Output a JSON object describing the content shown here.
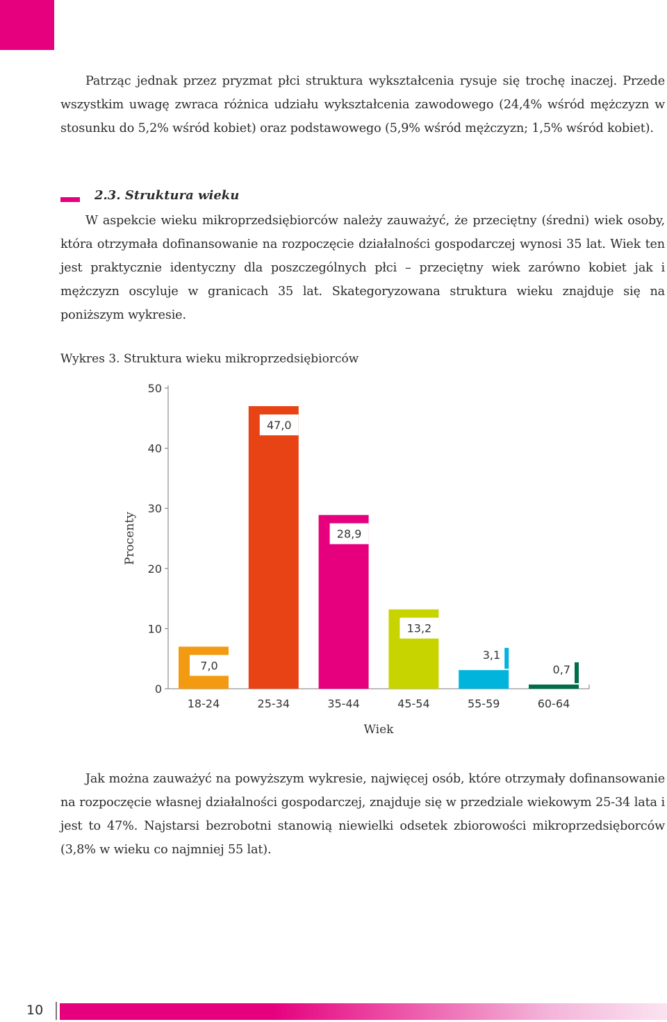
{
  "page": {
    "corner_color": "#e6007e",
    "paragraph1": "Patrząc jednak przez pryzmat płci struktura wykształcenia rysuje się trochę inaczej. Przede wszystkim uwagę zwraca różnica udziału wykształcenia zawodowego (24,4% wśród mężczyzn w stosunku do 5,2% wśród kobiet) oraz podstawowego (5,9% wśród mężczyzn; 1,5% wśród kobiet).",
    "section_heading": "2.3. Struktura wieku",
    "paragraph2": "W aspekcie wieku mikroprzedsiębiorców należy zauważyć, że przeciętny (średni) wiek osoby, która otrzymała dofinansowanie na rozpoczęcie działalności gospodarczej wynosi 35 lat. Wiek ten jest praktycznie identyczny dla poszczególnych płci – przeciętny wiek zarówno kobiet jak i mężczyzn oscyluje w granicach 35 lat. Skategoryzowana struktura wieku znajduje się na poniższym wykresie.",
    "caption": "Wykres 3. Struktura wieku mikroprzedsiębiorców",
    "paragraph3": "Jak można zauważyć na powyższym wykresie, najwięcej osób, które otrzymały dofinansowanie na rozpoczęcie własnej działalności gospodarczej, znajduje się w przedziale wiekowym 25-34 lata i jest to 47%. Najstarsi bezrobotni stanowią niewielki odsetek zbiorowości mikroprzedsięborców (3,8% w wieku co najmniej 55 lat).",
    "page_number": "10"
  },
  "chart_data": {
    "type": "bar",
    "title": "",
    "xlabel": "Wiek",
    "ylabel": "Procenty",
    "categories": [
      "18-24",
      "25-34",
      "35-44",
      "45-54",
      "55-59",
      "60-64"
    ],
    "values": [
      7.0,
      47.0,
      28.9,
      13.2,
      3.1,
      0.7
    ],
    "value_labels": [
      "7,0",
      "47,0",
      "28,9",
      "13,2",
      "3,1",
      "0,7"
    ],
    "colors": [
      "#f29a11",
      "#e84314",
      "#e6007e",
      "#c8d400",
      "#00b4dc",
      "#006e46"
    ],
    "ylim": [
      0,
      50
    ],
    "yticks": [
      "0",
      "10",
      "20",
      "30",
      "40",
      "50"
    ],
    "grid": false,
    "legend": "none"
  }
}
